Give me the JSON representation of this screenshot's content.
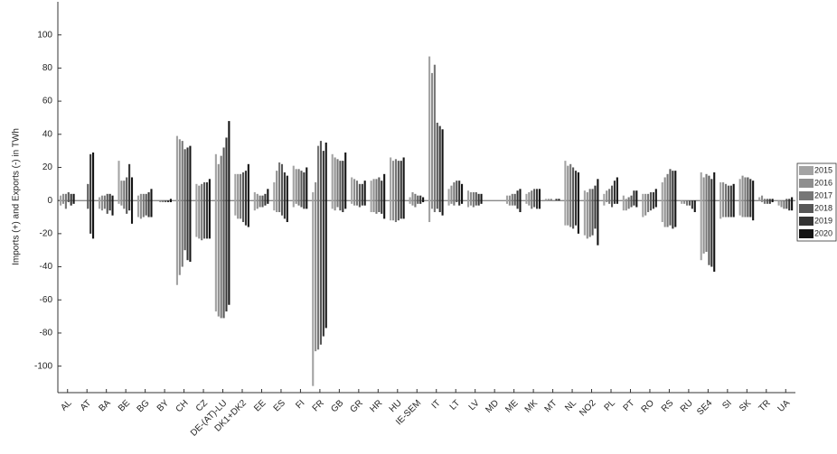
{
  "chart_data": {
    "type": "range-bar",
    "y_label": "Imports (+) and Exports (-) in TWh",
    "categories": [
      "AL",
      "AT",
      "BA",
      "BE",
      "BG",
      "BY",
      "CH",
      "CZ",
      "DE-(AT)-LU",
      "DK1+DK2",
      "EE",
      "ES",
      "FI",
      "FR",
      "GB",
      "GR",
      "HR",
      "HU",
      "IE-SEM",
      "IT",
      "LT",
      "LV",
      "MD",
      "ME",
      "MK",
      "MT",
      "NL",
      "NO2",
      "PL",
      "PT",
      "RO",
      "RS",
      "RU",
      "SE4",
      "SI",
      "SK",
      "TR",
      "UA"
    ],
    "ylim": [
      -116,
      120
    ],
    "yticks": [
      -100,
      -80,
      -60,
      -40,
      -20,
      0,
      20,
      40,
      60,
      80,
      100
    ],
    "legend": "right",
    "series": [
      {
        "name": "2015",
        "color": "#a3a3a3",
        "imports": [
          3,
          0,
          2,
          24,
          3,
          0,
          39,
          10,
          28,
          16,
          5,
          11,
          21,
          5,
          28,
          14,
          12,
          26,
          2,
          87,
          7,
          6,
          0,
          3,
          4,
          1,
          24,
          6,
          4,
          3,
          4,
          11,
          0,
          17,
          11,
          13,
          2,
          0
        ],
        "exports": [
          -3,
          0,
          -5,
          -2,
          -10,
          0,
          -51,
          -22,
          -67,
          -9,
          -6,
          -6,
          -4,
          -112,
          -5,
          -2,
          -7,
          -12,
          -2,
          -13,
          -3,
          -4,
          0,
          -2,
          -2,
          0,
          -15,
          -21,
          -3,
          -6,
          -10,
          -13,
          -2,
          -36,
          -11,
          -9,
          0,
          -3
        ]
      },
      {
        "name": "2016",
        "color": "#8e8e8e",
        "imports": [
          4,
          0,
          3,
          12,
          4,
          0,
          37,
          9,
          22,
          16,
          4,
          18,
          19,
          11,
          26,
          13,
          13,
          24,
          5,
          77,
          9,
          5,
          0,
          3,
          5,
          1,
          21,
          5,
          6,
          1,
          4,
          14,
          0,
          14,
          11,
          15,
          3,
          0
        ],
        "exports": [
          -2,
          0,
          -6,
          -3,
          -11,
          -1,
          -45,
          -23,
          -70,
          -11,
          -5,
          -7,
          -2,
          -91,
          -6,
          -3,
          -7,
          -12,
          -3,
          -5,
          -2,
          -3,
          0,
          -3,
          -3,
          0,
          -15,
          -23,
          -1,
          -6,
          -9,
          -16,
          -2,
          -32,
          -10,
          -10,
          -1,
          -4
        ]
      },
      {
        "name": "2017",
        "color": "#767676",
        "imports": [
          4,
          0,
          3,
          12,
          4,
          0,
          36,
          10,
          27,
          16,
          3,
          23,
          19,
          33,
          25,
          12,
          13,
          25,
          4,
          82,
          11,
          5,
          0,
          4,
          6,
          1,
          22,
          7,
          7,
          2,
          4,
          16,
          0,
          16,
          10,
          14,
          1,
          0
        ],
        "exports": [
          -5,
          0,
          -5,
          -5,
          -10,
          -1,
          -40,
          -24,
          -71,
          -11,
          -4,
          -7,
          -3,
          -90,
          -4,
          -3,
          -8,
          -13,
          -4,
          -7,
          -3,
          -4,
          0,
          -3,
          -5,
          0,
          -16,
          -22,
          -2,
          -5,
          -7,
          -16,
          -3,
          -31,
          -10,
          -10,
          -2,
          -5
        ]
      },
      {
        "name": "2018",
        "color": "#575757",
        "imports": [
          5,
          10,
          4,
          14,
          4,
          0,
          31,
          11,
          32,
          17,
          3,
          22,
          18,
          36,
          24,
          10,
          14,
          24,
          3,
          47,
          12,
          5,
          0,
          4,
          7,
          0,
          20,
          7,
          9,
          3,
          5,
          19,
          0,
          15,
          9,
          14,
          1,
          1
        ],
        "exports": [
          -1,
          -5,
          -8,
          -8,
          -9,
          -1,
          -30,
          -23,
          -71,
          -13,
          -4,
          -9,
          -4,
          -87,
          -6,
          -4,
          -7,
          -12,
          -2,
          -5,
          -1,
          -3,
          0,
          -3,
          -4,
          0,
          -17,
          -21,
          -4,
          -4,
          -6,
          -15,
          -3,
          -39,
          -10,
          -10,
          -2,
          -5
        ]
      },
      {
        "name": "2019",
        "color": "#343434",
        "imports": [
          4,
          28,
          4,
          22,
          5,
          0,
          32,
          11,
          38,
          18,
          4,
          17,
          17,
          30,
          24,
          10,
          12,
          24,
          3,
          45,
          12,
          4,
          0,
          6,
          7,
          1,
          18,
          9,
          12,
          6,
          5,
          18,
          0,
          13,
          9,
          13,
          1,
          1
        ],
        "exports": [
          -3,
          -20,
          -6,
          -6,
          -10,
          -1,
          -36,
          -23,
          -67,
          -15,
          -3,
          -11,
          -5,
          -82,
          -7,
          -3,
          -8,
          -11,
          -2,
          -7,
          -3,
          -3,
          0,
          -5,
          -5,
          0,
          -15,
          -17,
          -2,
          -3,
          -5,
          -17,
          -5,
          -40,
          -10,
          -10,
          -2,
          -6
        ]
      },
      {
        "name": "2020",
        "color": "#141414",
        "imports": [
          4,
          29,
          3,
          14,
          7,
          1,
          33,
          13,
          48,
          22,
          7,
          15,
          20,
          35,
          29,
          12,
          16,
          26,
          2,
          43,
          10,
          4,
          0,
          7,
          7,
          1,
          17,
          13,
          14,
          6,
          7,
          18,
          0,
          17,
          10,
          12,
          1,
          2
        ],
        "exports": [
          -2,
          -23,
          -9,
          -14,
          -10,
          -1,
          -37,
          -23,
          -63,
          -16,
          -2,
          -13,
          -5,
          -77,
          -5,
          -3,
          -11,
          -11,
          -1,
          -9,
          -2,
          -2,
          0,
          -7,
          -5,
          0,
          -20,
          -27,
          -2,
          -4,
          -4,
          -16,
          -7,
          -43,
          -10,
          -12,
          -1,
          -6
        ]
      }
    ]
  }
}
